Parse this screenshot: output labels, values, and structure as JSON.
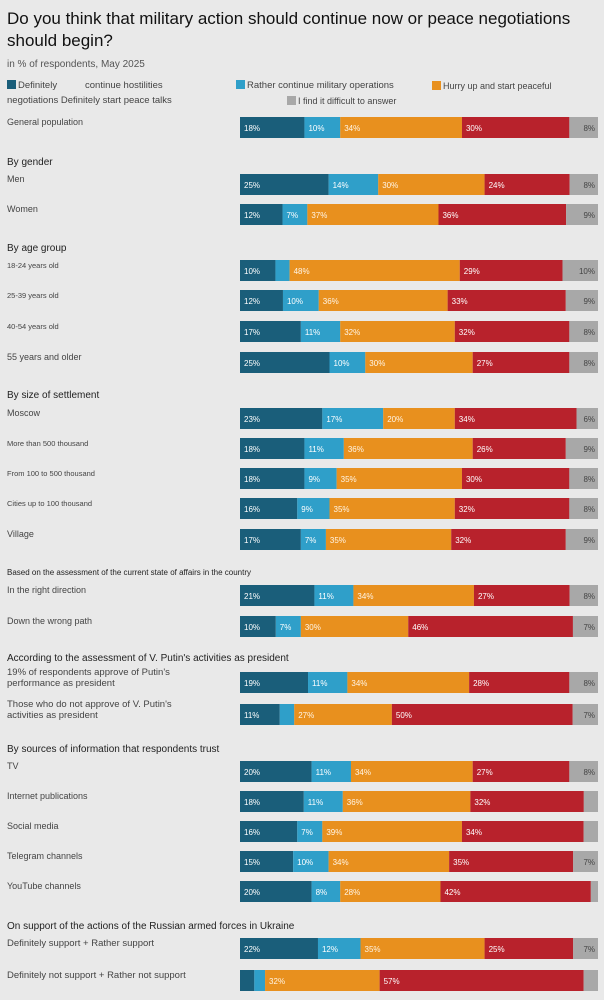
{
  "title": "Do you think that military action should continue now or peace negotiations should begin?",
  "subtitle": "in % of respondents, May 2025",
  "legend": [
    {
      "label": "Definitely",
      "color": "#1a5e7a"
    },
    {
      "label": "continue hostilities",
      "color": ""
    },
    {
      "label": "Rather continue military operations",
      "color": "#2f9fc9"
    },
    {
      "label": "Hurry up and start peaceful",
      "color": "#e8901e"
    },
    {
      "label": "negotiations Definitely start peace talks",
      "color": ""
    },
    {
      "label": "I find it difficult to answer",
      "color": "#a8a8a8"
    }
  ],
  "colors": {
    "definitely_continue": "#1a5e7a",
    "rather_continue": "#2f9fc9",
    "rather_peace": "#e8901e",
    "definitely_peace": "#b8222c",
    "difficult": "#a8a8a8"
  },
  "chart_data": {
    "type": "bar",
    "stacked": true,
    "orientation": "horizontal",
    "xlim": [
      0,
      100
    ],
    "unit": "%",
    "groups": [
      {
        "heading": "",
        "rows": [
          {
            "label": "General population",
            "values": [
              18,
              10,
              34,
              30,
              8
            ]
          }
        ]
      },
      {
        "heading": "By gender",
        "rows": [
          {
            "label": "Men",
            "values": [
              25,
              14,
              30,
              24,
              8
            ]
          },
          {
            "label": "Women",
            "values": [
              12,
              7,
              37,
              36,
              9
            ]
          }
        ]
      },
      {
        "heading": "By age group",
        "rows": [
          {
            "label": "18-24 years old",
            "values": [
              10,
              4,
              48,
              29,
              10
            ],
            "hide_label_index": [
              1
            ]
          },
          {
            "label": "25-39 years old",
            "values": [
              12,
              10,
              36,
              33,
              9
            ]
          },
          {
            "label": "40-54 years old",
            "values": [
              17,
              11,
              32,
              32,
              8
            ]
          },
          {
            "label": "55 years and older",
            "values": [
              25,
              10,
              30,
              27,
              8
            ]
          }
        ]
      },
      {
        "heading": "By size of settlement",
        "rows": [
          {
            "label": "Moscow",
            "values": [
              23,
              17,
              20,
              34,
              6
            ]
          },
          {
            "label": "More than 500 thousand",
            "values": [
              18,
              11,
              36,
              26,
              9
            ]
          },
          {
            "label": "From 100 to 500 thousand",
            "values": [
              18,
              9,
              35,
              30,
              8
            ]
          },
          {
            "label": "Cities up to 100 thousand",
            "values": [
              16,
              9,
              35,
              32,
              8
            ]
          },
          {
            "label": "Village",
            "values": [
              17,
              7,
              35,
              32,
              9
            ]
          }
        ]
      },
      {
        "heading": "Based on the assessment of the current state of affairs in the country",
        "rows": [
          {
            "label": "In the right direction",
            "values": [
              21,
              11,
              34,
              27,
              8
            ]
          },
          {
            "label": "Down the wrong path",
            "values": [
              10,
              7,
              30,
              46,
              7
            ]
          }
        ]
      },
      {
        "heading": "According to the assessment of V. Putin's activities as president",
        "rows": [
          {
            "label": "19% of respondents approve of Putin's performance as president",
            "values": [
              19,
              11,
              34,
              28,
              8
            ]
          },
          {
            "label": "Those who do not approve of V. Putin's activities as president",
            "values": [
              11,
              4,
              27,
              50,
              7
            ],
            "hide_label_index": [
              1
            ]
          }
        ]
      },
      {
        "heading": "By sources of information that respondents trust",
        "rows": [
          {
            "label": "TV",
            "values": [
              20,
              11,
              34,
              27,
              8
            ]
          },
          {
            "label": "Internet publications",
            "values": [
              18,
              11,
              36,
              32,
              4
            ],
            "hide_label_index": [
              4
            ]
          },
          {
            "label": "Social media",
            "values": [
              16,
              7,
              39,
              34,
              4
            ],
            "hide_label_index": [
              4
            ]
          },
          {
            "label": "Telegram channels",
            "values": [
              15,
              10,
              34,
              35,
              7
            ]
          },
          {
            "label": "YouTube channels",
            "values": [
              20,
              8,
              28,
              42,
              2
            ],
            "hide_label_index": [
              4
            ]
          }
        ]
      },
      {
        "heading": "On support of the actions of the Russian armed forces in Ukraine",
        "rows": [
          {
            "label": "Definitely support + Rather support",
            "values": [
              22,
              12,
              35,
              25,
              7
            ]
          },
          {
            "label": "Definitely not support + Rather not support",
            "values": [
              4,
              3,
              32,
              57,
              4
            ],
            "hide_label_index": [
              0,
              1,
              4
            ]
          }
        ]
      }
    ]
  }
}
